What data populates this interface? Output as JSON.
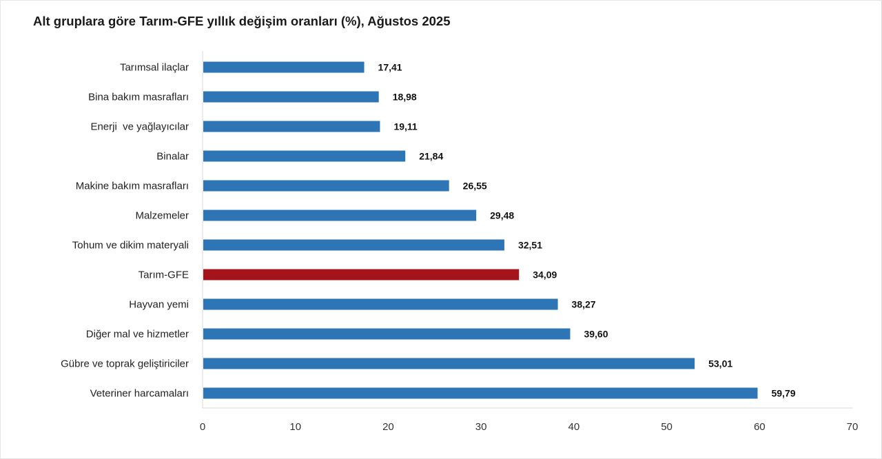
{
  "title": "Alt gruplara göre Tarım-GFE yıllık değişim oranları (%), Ağustos 2025",
  "chart_data": {
    "type": "bar",
    "orientation": "horizontal",
    "title": "Alt gruplara göre Tarım-GFE yıllık değişim oranları (%), Ağustos 2025",
    "categories": [
      "Tarımsal ilaçlar",
      "Bina bakım masrafları",
      "Enerji  ve yağlayıcılar",
      "Binalar",
      "Makine bakım masrafları",
      "Malzemeler",
      "Tohum ve dikim materyali",
      "Tarım-GFE",
      "Hayvan yemi",
      "Diğer mal ve hizmetler",
      "Gübre ve toprak geliştiriciler",
      "Veteriner harcamaları"
    ],
    "values": [
      17.41,
      18.98,
      19.11,
      21.84,
      26.55,
      29.48,
      32.51,
      34.09,
      38.27,
      39.6,
      53.01,
      59.79
    ],
    "value_labels": [
      "17,41",
      "18,98",
      "19,11",
      "21,84",
      "26,55",
      "29,48",
      "32,51",
      "34,09",
      "38,27",
      "39,60",
      "53,01",
      "59,79"
    ],
    "highlight_index": 7,
    "xlim": [
      0,
      70
    ],
    "xticks": [
      0,
      10,
      20,
      30,
      40,
      50,
      60,
      70
    ],
    "grid": false,
    "legend": "none",
    "colors": {
      "bar": "#2e75b6",
      "highlight": "#a5141c",
      "axis": "#d9d9d9"
    }
  }
}
